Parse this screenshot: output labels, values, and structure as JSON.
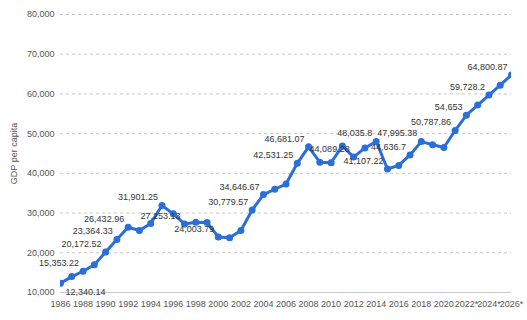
{
  "chart_data": {
    "type": "line",
    "y_label": "GDP per capita",
    "x": [
      1986,
      1987,
      1988,
      1989,
      1990,
      1991,
      1992,
      1993,
      1994,
      1995,
      1996,
      1997,
      1998,
      1999,
      2000,
      2001,
      2002,
      2003,
      2004,
      2005,
      2006,
      2007,
      2008,
      2009,
      2010,
      2011,
      2012,
      2013,
      2014,
      2015,
      2016,
      2017,
      2018,
      2019,
      2020,
      2021,
      2022,
      2023,
      2024,
      2025,
      2026
    ],
    "values": [
      12340.14,
      14000,
      15353.22,
      17000,
      20172.52,
      23364.33,
      26432.96,
      25600,
      27400,
      31901.25,
      29800,
      27253.13,
      27700,
      27600,
      24003.79,
      23800,
      25600,
      30779.57,
      34646.67,
      36000,
      37300,
      42531.25,
      46681.07,
      42800,
      42700,
      46900,
      44089.28,
      46400,
      48035.8,
      41107.22,
      42000,
      44636.7,
      47995.38,
      47200,
      46500,
      50787.86,
      54653,
      57200,
      59728.2,
      62200,
      64800.87
    ],
    "value_labels": [
      "12,340.14",
      null,
      "15,353.22",
      null,
      "20,172.52",
      "23,364.33",
      "26,432.96",
      null,
      null,
      "31,901.25",
      null,
      "27,253.13",
      null,
      null,
      "24,003.79",
      null,
      null,
      "30,779.57",
      "34,646.67",
      null,
      null,
      "42,531.25",
      "46,681.07",
      null,
      null,
      null,
      "44,089.28",
      null,
      "48,035.8",
      "41,107.22",
      null,
      "44,636.7",
      "47,995.38",
      null,
      null,
      "50,787.86",
      "54,653",
      null,
      "59,728.2",
      null,
      "64,800.87"
    ],
    "data_labels": true,
    "color": "#2a6ed8",
    "marker": "circle",
    "xlim": [
      1986,
      2026
    ],
    "xticks": [
      1986,
      1988,
      1990,
      1992,
      1994,
      1996,
      1998,
      2000,
      2002,
      2004,
      2006,
      2008,
      2010,
      2012,
      2014,
      2016,
      2018,
      2020,
      {
        "value": 2022,
        "label": "2022*"
      },
      {
        "value": 2024,
        "label": "2024*"
      },
      {
        "value": 2026,
        "label": "2026*"
      }
    ],
    "ylim": [
      10000,
      80000
    ],
    "yticks": [
      {
        "value": 10000,
        "label": "10,000"
      },
      {
        "value": 20000,
        "label": "20,000"
      },
      {
        "value": 30000,
        "label": "30,000"
      },
      {
        "value": 40000,
        "label": "40,000"
      },
      {
        "value": 50000,
        "label": "50,000"
      },
      {
        "value": 60000,
        "label": "60,000"
      },
      {
        "value": 70000,
        "label": "70,000"
      },
      {
        "value": 80000,
        "label": "80,000"
      }
    ],
    "grid": true
  }
}
